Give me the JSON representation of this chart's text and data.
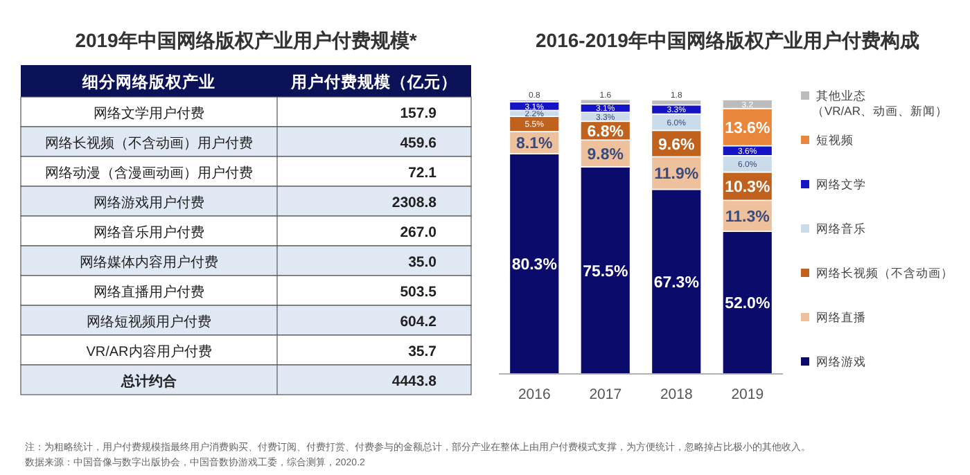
{
  "chart_data": [
    {
      "type": "other",
      "title": "2019年中国网络版权产业用户付费规模*",
      "annotations": [
        "细分网络版权产业",
        "用户付费规模（亿元）",
        "注：为粗略统计，用户付费规模指最终用户消费购买、付费订阅、付费打赏、付费参与的金额总计，部分产业在整体上由用户付费模式支撑，为方便统计，忽略掉占比极小的其他收入。",
        "数据来源：中国音像与数字出版协会，中国音数协游戏工委，综合测算，2020.2"
      ],
      "categories": [
        "网络文学用户付费",
        "网络长视频（不含动画）用户付费",
        "网络动漫（含漫画动画）用户付费",
        "网络游戏用户付费",
        "网络音乐用户付费",
        "网络媒体内容用户付费",
        "网络直播用户付费",
        "网络短视频用户付费",
        "VR/AR内容用户付费",
        "总计约合"
      ],
      "values": [
        157.9,
        459.6,
        72.1,
        2308.8,
        267.0,
        35.0,
        503.5,
        604.2,
        35.7,
        4443.8
      ],
      "value_labels": [
        "157.9",
        "459.6",
        "72.1",
        "2308.8",
        "267.0",
        "35.0",
        "503.5",
        "604.2",
        "35.7",
        "4443.8"
      ]
    },
    {
      "type": "bar",
      "stacked": true,
      "title": "2016-2019年中国网络版权产业用户付费构成",
      "categories": [
        "2016",
        "2017",
        "2018",
        "2019"
      ],
      "ylim": [
        0,
        100
      ],
      "tick_labels": "x",
      "legend": "right",
      "series": [
        {
          "name": "网络游戏",
          "color": "#0b0b6b",
          "values": [
            80.3,
            75.5,
            67.3,
            52.0
          ],
          "value_labels": [
            "80.3%",
            "75.5%",
            "67.3%",
            "52.0%"
          ]
        },
        {
          "name": "网络直播",
          "color": "#efc09c",
          "values": [
            8.1,
            9.8,
            11.9,
            11.3
          ],
          "value_labels": [
            "8.1%",
            "9.8%",
            "11.9%",
            "11.3%"
          ]
        },
        {
          "name": "网络长视频（不含动画）",
          "color": "#c0621e",
          "values": [
            5.5,
            6.8,
            9.6,
            10.3
          ],
          "value_labels": [
            "5.5%",
            "6.8%",
            "9.6%",
            "10.3%"
          ]
        },
        {
          "name": "网络音乐",
          "color": "#cadcea",
          "values": [
            2.2,
            3.3,
            6.0,
            6.0
          ],
          "value_labels": [
            "2.2%",
            "3.3%",
            "6.0%",
            "6.0%"
          ]
        },
        {
          "name": "网络文学",
          "color": "#1414c4",
          "values": [
            3.1,
            3.1,
            3.3,
            3.6
          ],
          "value_labels": [
            "3.1%",
            "3.1%",
            "3.3%",
            "3.6%"
          ]
        },
        {
          "name": "短视频",
          "color": "#e8873c",
          "values": [
            null,
            null,
            null,
            13.6
          ],
          "value_labels": [
            null,
            null,
            null,
            "13.6%"
          ]
        },
        {
          "name": "其他业态（VR/AR、动画、新闻）",
          "color": "#bcbcbc",
          "values": [
            0.8,
            1.6,
            1.8,
            3.2
          ],
          "value_labels": [
            "0.8",
            "1.6",
            "1.8",
            "3.2"
          ]
        }
      ]
    }
  ]
}
